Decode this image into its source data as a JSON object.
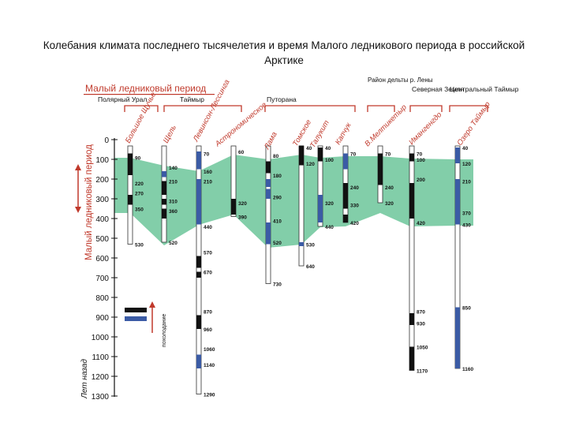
{
  "title": "Колебания климата последнего тысячелетия и время Малого ледникового периода в российской Арктике",
  "header": {
    "lia_title": "Малый ледниковый период",
    "regions": [
      {
        "label": "Полярный Урал"
      },
      {
        "label": "Таймыр"
      },
      {
        "label": "Путорана"
      },
      {
        "label": "Район дельты р. Лены"
      },
      {
        "label": "Северная Земля"
      },
      {
        "label": "Центральный Таймыр"
      }
    ]
  },
  "axis": {
    "unit_label": "Лет назад",
    "lia_vertical_label": "Малый ледниковый период",
    "ticks": [
      "0",
      "100",
      "200",
      "300",
      "400",
      "500",
      "600",
      "700",
      "800",
      "900",
      "1000",
      "1100",
      "1200",
      "1300"
    ]
  },
  "legend": {
    "label": "похолодание",
    "swatch_colors": [
      "#111111",
      "#3b5ba5"
    ]
  },
  "colors": {
    "red": "#c0392b",
    "green": "#6cc59a",
    "cold": "#111111",
    "warm": "#3b5ba5"
  },
  "sites": [
    {
      "name": "Большое Щучье",
      "marks": [
        "90",
        "220",
        "270",
        "350",
        "530"
      ]
    },
    {
      "name": "Щель",
      "marks": [
        "140",
        "210",
        "310",
        "360",
        "520"
      ]
    },
    {
      "name": "Левинсон-Лессинга",
      "marks": [
        "70",
        "160",
        "210",
        "440",
        "570",
        "670",
        "870",
        "960",
        "1060",
        "1140",
        "1290"
      ]
    },
    {
      "name": "Астрономическое",
      "marks": [
        "60",
        "320",
        "390"
      ]
    },
    {
      "name": "Лама",
      "marks": [
        "80",
        "180",
        "290",
        "410",
        "520",
        "730"
      ]
    },
    {
      "name": "Томское",
      "marks": [
        "40",
        "120",
        "530",
        "640"
      ]
    },
    {
      "name": "Талукит",
      "marks": [
        "40",
        "100",
        "320",
        "440"
      ]
    },
    {
      "name": "Капчук",
      "marks": [
        "70",
        "240",
        "330",
        "420"
      ]
    },
    {
      "name": "В.Мелтикетыр",
      "marks": [
        "70",
        "240",
        "320"
      ]
    },
    {
      "name": "Имангенгдо",
      "marks": [
        "70",
        "100",
        "200",
        "420",
        "870",
        "930",
        "1050",
        "1170"
      ]
    },
    {
      "name": "Озеро Таймыр",
      "marks": [
        "40",
        "120",
        "210",
        "370",
        "430",
        "850",
        "1160"
      ]
    }
  ]
}
